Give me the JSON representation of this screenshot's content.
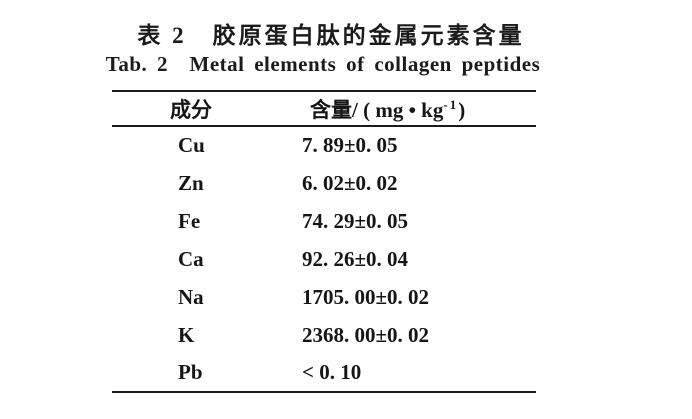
{
  "caption": {
    "zh": "表 2 胶原蛋白肽的金属元素含量",
    "en": "Tab. 2 Metal elements of collagen peptides"
  },
  "table": {
    "headers": {
      "component": "成分",
      "content_prefix": "含量/ ( mg • kg",
      "content_sup": "-1",
      "content_suffix": ")"
    },
    "rows": [
      {
        "component": "Cu",
        "content": "7. 89±0. 05"
      },
      {
        "component": "Zn",
        "content": "6. 02±0. 02"
      },
      {
        "component": "Fe",
        "content": "74. 29±0. 05"
      },
      {
        "component": "Ca",
        "content": "92. 26±0. 04"
      },
      {
        "component": "Na",
        "content": "1705. 00±0. 02"
      },
      {
        "component": "K",
        "content": "2368. 00±0. 02"
      },
      {
        "component": "Pb",
        "content": "< 0. 10"
      }
    ]
  },
  "colors": {
    "background": "#ffffff",
    "text": "#1b1b1b",
    "rule": "#1a1a1a"
  }
}
